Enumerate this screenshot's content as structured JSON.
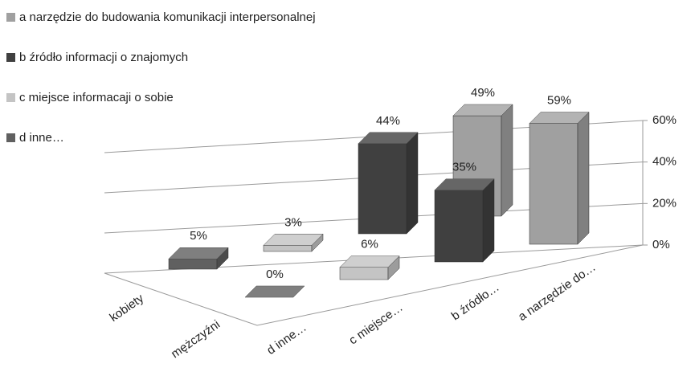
{
  "chart_data": {
    "type": "bar3d",
    "categories": [
      "kobiety",
      "mężczyźni"
    ],
    "series": [
      {
        "name": "a narzędzie do budowania komunikacji interpersonalnej",
        "axis_label": "a narzędzie do…",
        "color": "#a0a0a0",
        "values": [
          49,
          59
        ],
        "value_labels": [
          "49%",
          "59%"
        ]
      },
      {
        "name": "b źródło informacji o znajomych",
        "axis_label": "b źródło…",
        "color": "#404040",
        "values": [
          44,
          35
        ],
        "value_labels": [
          "44%",
          "35%"
        ]
      },
      {
        "name": "c miejsce informacaji o sobie",
        "axis_label": "c miejsce…",
        "color": "#c4c4c4",
        "values": [
          3,
          6
        ],
        "value_labels": [
          "3%",
          "6%"
        ]
      },
      {
        "name": "d inne…",
        "axis_label": "d inne…",
        "color": "#606060",
        "values": [
          5,
          0
        ],
        "value_labels": [
          "5%",
          "0%"
        ]
      }
    ],
    "ylim": [
      0,
      60
    ],
    "yticks": [
      {
        "value": 0,
        "label": "0%"
      },
      {
        "value": 20,
        "label": "20%"
      },
      {
        "value": 40,
        "label": "40%"
      },
      {
        "value": 60,
        "label": "60%"
      }
    ],
    "grid": true
  }
}
